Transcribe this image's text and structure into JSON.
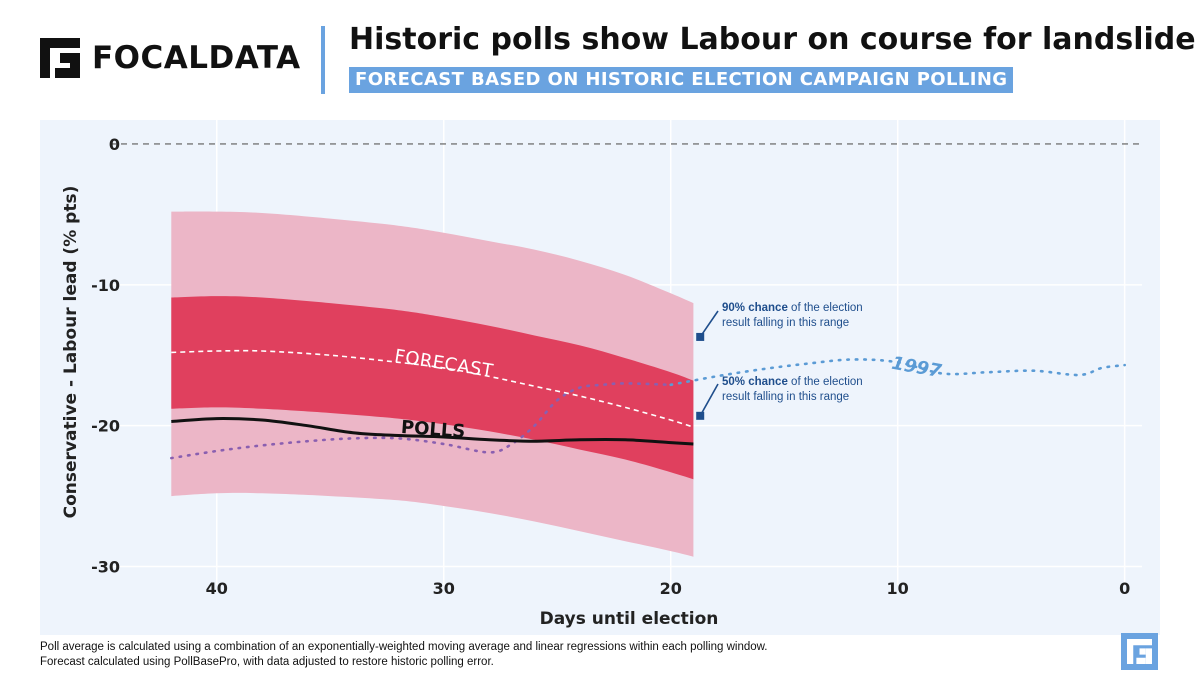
{
  "brand": {
    "name": "FOCALDATA",
    "accent": "#6aa3e0"
  },
  "header": {
    "title": "Historic polls show Labour on course for landslide",
    "subtitle": "FORECAST BASED ON HISTORIC ELECTION CAMPAIGN POLLING"
  },
  "annotations": {
    "ninety": {
      "bold": "90% chance",
      "rest": " of the election",
      "line2": "result falling in this range"
    },
    "fifty": {
      "bold": "50% chance",
      "rest": " of the election",
      "line2": "result falling in this range"
    }
  },
  "footnote": {
    "line1": "Poll average is calculated using a combination of an exponentially-weighted moving average and linear regressions within each polling window.",
    "line2": "Forecast calculated using PollBasePro, with data adjusted to restore historic polling error."
  },
  "chart_data": {
    "type": "line",
    "xlabel": "Days until election",
    "ylabel": "Conservative - Labour lead (% pts)",
    "xlim": [
      42.5,
      -0.5
    ],
    "ylim": [
      -30.6,
      1.7
    ],
    "xticks": [
      40,
      30,
      20,
      10,
      0
    ],
    "yticks": [
      0,
      -10,
      -20,
      -30
    ],
    "grid": true,
    "zero_line": "dashed",
    "colors": {
      "band90": "#ecb6c7",
      "band50": "#e0405e",
      "polls": "#111111",
      "forecast": "#ffffff",
      "y1997": "#5b9bd5",
      "y1997_overlap": "#8a5fb0",
      "plot_bg": "#eef4fc"
    },
    "series": [
      {
        "name": "90% range",
        "x": [
          42,
          40,
          38,
          35,
          32,
          30,
          28,
          26,
          24,
          22,
          20,
          19
        ],
        "upper": [
          -4.8,
          -4.8,
          -4.9,
          -5.3,
          -5.8,
          -6.3,
          -6.9,
          -7.5,
          -8.3,
          -9.3,
          -10.6,
          -11.3
        ],
        "lower": [
          -25.0,
          -24.8,
          -24.8,
          -25.0,
          -25.3,
          -25.7,
          -26.2,
          -26.8,
          -27.5,
          -28.2,
          -28.9,
          -29.3
        ]
      },
      {
        "name": "50% range",
        "x": [
          42,
          40,
          38,
          35,
          32,
          30,
          28,
          26,
          24,
          22,
          20,
          19
        ],
        "upper": [
          -10.9,
          -10.8,
          -10.9,
          -11.3,
          -11.8,
          -12.3,
          -12.9,
          -13.6,
          -14.3,
          -15.2,
          -16.2,
          -16.8
        ],
        "lower": [
          -18.8,
          -18.7,
          -18.8,
          -19.1,
          -19.5,
          -19.9,
          -20.4,
          -21.0,
          -21.7,
          -22.4,
          -23.3,
          -23.8
        ]
      },
      {
        "name": "FORECAST",
        "x": [
          42,
          40,
          38,
          35,
          32,
          30,
          28,
          26,
          24,
          22,
          20,
          19
        ],
        "values": [
          -14.8,
          -14.7,
          -14.7,
          -15.0,
          -15.5,
          -15.9,
          -16.5,
          -17.2,
          -17.9,
          -18.7,
          -19.6,
          -20.1
        ]
      },
      {
        "name": "POLLS",
        "x": [
          42,
          40,
          38,
          36,
          34,
          32,
          30,
          28,
          26,
          24,
          22,
          20,
          19
        ],
        "values": [
          -19.7,
          -19.5,
          -19.6,
          -20.0,
          -20.5,
          -20.7,
          -20.8,
          -21.0,
          -21.1,
          -21.0,
          -21.0,
          -21.2,
          -21.3
        ]
      },
      {
        "name": "1997",
        "x": [
          42,
          40,
          38,
          36,
          34,
          32,
          30,
          28,
          27,
          26,
          25,
          24,
          23,
          22,
          20,
          18,
          16,
          14,
          12,
          10,
          8,
          6,
          4,
          2,
          1,
          0
        ],
        "values": [
          -22.3,
          -21.8,
          -21.4,
          -21.1,
          -20.9,
          -20.9,
          -21.3,
          -21.9,
          -21.3,
          -20.0,
          -18.2,
          -17.3,
          -17.1,
          -17.0,
          -17.1,
          -16.5,
          -16.0,
          -15.6,
          -15.3,
          -15.5,
          -16.3,
          -16.2,
          -16.1,
          -16.4,
          -15.9,
          -15.7
        ]
      }
    ],
    "labels": {
      "forecast": "FORECAST",
      "polls": "POLLS",
      "y1997": "1997"
    }
  }
}
